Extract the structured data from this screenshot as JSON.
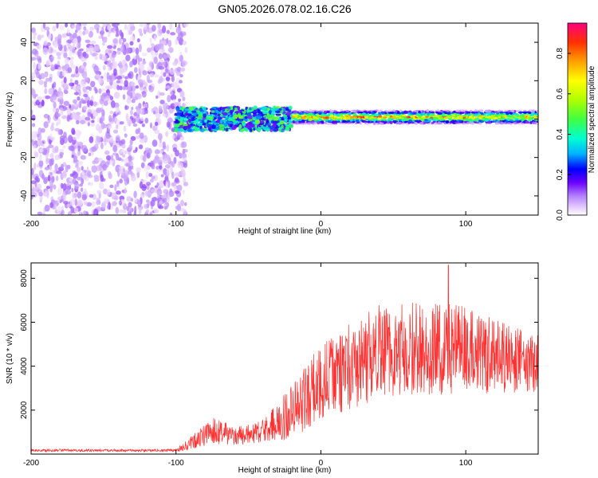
{
  "title": "GN05.2026.078.02.16.C26",
  "chart_data": [
    {
      "type": "heatmap",
      "name": "spectrogram",
      "xlabel": "Height of straight line (km)",
      "ylabel": "Frequency (Hz)",
      "xlim": [
        -200,
        150
      ],
      "ylim": [
        -50,
        50
      ],
      "xticks": [
        -200,
        -100,
        0,
        100
      ],
      "yticks": [
        -40,
        -20,
        0,
        20,
        40
      ],
      "colorbar": {
        "label": "Normalized spectral amplitude",
        "range": [
          0,
          0.95
        ],
        "ticks": [
          "0.0",
          "0.2",
          "0.4",
          "0.6",
          "0.8"
        ],
        "tick_values": [
          0.0,
          0.2,
          0.4,
          0.6,
          0.8
        ],
        "colormap": [
          "#ffffff",
          "#e6ccff",
          "#b380ff",
          "#6a00ff",
          "#0000ff",
          "#00b4ff",
          "#00ffd0",
          "#40ff40",
          "#b0ff00",
          "#ffff00",
          "#ffa000",
          "#ff3000",
          "#ff0080"
        ]
      },
      "regions": [
        {
          "x_range": [
            -200,
            -93
          ],
          "description": "broadband noise",
          "amplitude": 0.15
        },
        {
          "x_range": [
            -100,
            -20
          ],
          "center_freq": 0,
          "bandwidth": 12,
          "amplitude": 0.45
        },
        {
          "x_range": [
            -20,
            150
          ],
          "center_freq": 1,
          "bandwidth": 7,
          "amplitude": 0.9
        }
      ]
    },
    {
      "type": "line",
      "name": "snr",
      "xlabel": "Height of straight line (km)",
      "ylabel": "SNR (10 * v/v)",
      "xlim": [
        -200,
        150
      ],
      "ylim": [
        0,
        8700
      ],
      "xticks": [
        -200,
        -100,
        0,
        100
      ],
      "yticks": [
        2000,
        4000,
        6000,
        8000
      ],
      "color": "#ff3030",
      "envelope": [
        {
          "x": -200,
          "base": 150,
          "spread": 120
        },
        {
          "x": -100,
          "base": 150,
          "spread": 120
        },
        {
          "x": -90,
          "base": 400,
          "spread": 600
        },
        {
          "x": -75,
          "base": 900,
          "spread": 1200
        },
        {
          "x": -60,
          "base": 700,
          "spread": 900
        },
        {
          "x": -40,
          "base": 900,
          "spread": 1100
        },
        {
          "x": -20,
          "base": 1500,
          "spread": 2500
        },
        {
          "x": 0,
          "base": 2800,
          "spread": 3500
        },
        {
          "x": 40,
          "base": 4000,
          "spread": 4400
        },
        {
          "x": 90,
          "base": 4200,
          "spread": 4200
        },
        {
          "x": 150,
          "base": 3700,
          "spread": 2600
        }
      ],
      "peak": {
        "x": 88,
        "y": 8600
      }
    }
  ]
}
